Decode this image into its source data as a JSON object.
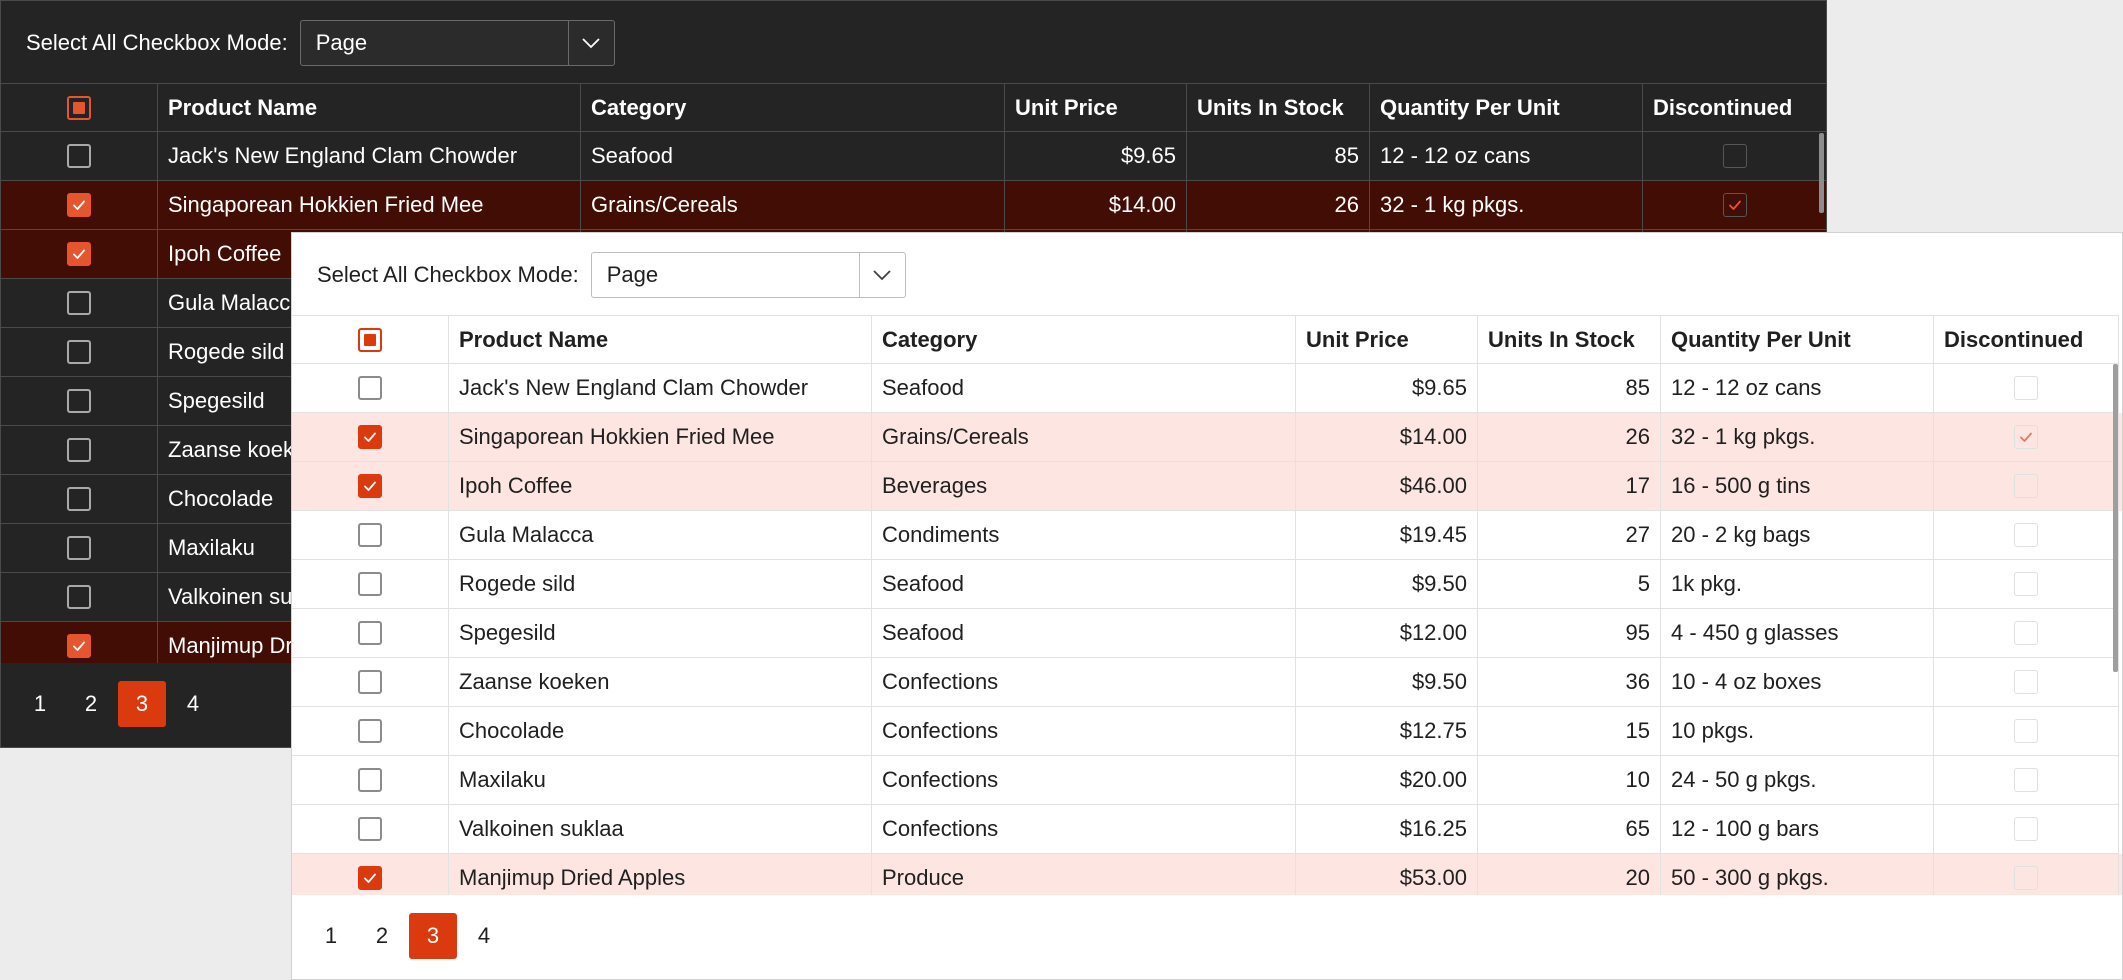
{
  "colors": {
    "accent": "#db3a0f",
    "dark_selected_row": "#420d04",
    "light_selected_row": "#fde6e2"
  },
  "toolbar": {
    "label": "Select All Checkbox Mode:",
    "mode_value": "Page"
  },
  "grid": {
    "columns": [
      "Product Name",
      "Category",
      "Unit Price",
      "Units In Stock",
      "Quantity Per Unit",
      "Discontinued"
    ],
    "rows": [
      {
        "selected": false,
        "name": "Jack's New England Clam Chowder",
        "category": "Seafood",
        "price": "$9.65",
        "stock": "85",
        "qty": "12 - 12 oz cans",
        "discontinued": false
      },
      {
        "selected": true,
        "name": "Singaporean Hokkien Fried Mee",
        "category": "Grains/Cereals",
        "price": "$14.00",
        "stock": "26",
        "qty": "32 - 1 kg pkgs.",
        "discontinued": true
      },
      {
        "selected": true,
        "name": "Ipoh Coffee",
        "category": "Beverages",
        "price": "$46.00",
        "stock": "17",
        "qty": "16 - 500 g tins",
        "discontinued": false
      },
      {
        "selected": false,
        "name": "Gula Malacca",
        "category": "Condiments",
        "price": "$19.45",
        "stock": "27",
        "qty": "20 - 2 kg bags",
        "discontinued": false
      },
      {
        "selected": false,
        "name": "Rogede sild",
        "category": "Seafood",
        "price": "$9.50",
        "stock": "5",
        "qty": "1k pkg.",
        "discontinued": false
      },
      {
        "selected": false,
        "name": "Spegesild",
        "category": "Seafood",
        "price": "$12.00",
        "stock": "95",
        "qty": "4 - 450 g glasses",
        "discontinued": false
      },
      {
        "selected": false,
        "name": "Zaanse koeken",
        "category": "Confections",
        "price": "$9.50",
        "stock": "36",
        "qty": "10 - 4 oz boxes",
        "discontinued": false
      },
      {
        "selected": false,
        "name": "Chocolade",
        "category": "Confections",
        "price": "$12.75",
        "stock": "15",
        "qty": "10 pkgs.",
        "discontinued": false
      },
      {
        "selected": false,
        "name": "Maxilaku",
        "category": "Confections",
        "price": "$20.00",
        "stock": "10",
        "qty": "24 - 50 g pkgs.",
        "discontinued": false
      },
      {
        "selected": false,
        "name": "Valkoinen suklaa",
        "category": "Confections",
        "price": "$16.25",
        "stock": "65",
        "qty": "12 - 100 g bars",
        "discontinued": false
      },
      {
        "selected": true,
        "name": "Manjimup Dried Apples",
        "category": "Produce",
        "price": "$53.00",
        "stock": "20",
        "qty": "50 - 300 g pkgs.",
        "discontinued": false
      }
    ]
  },
  "pager": {
    "pages": [
      "1",
      "2",
      "3",
      "4"
    ],
    "current": "3"
  },
  "icons": {
    "dropdown": "chevron-down-icon",
    "check": "check-icon",
    "indeterminate": "indeterminate-icon"
  }
}
